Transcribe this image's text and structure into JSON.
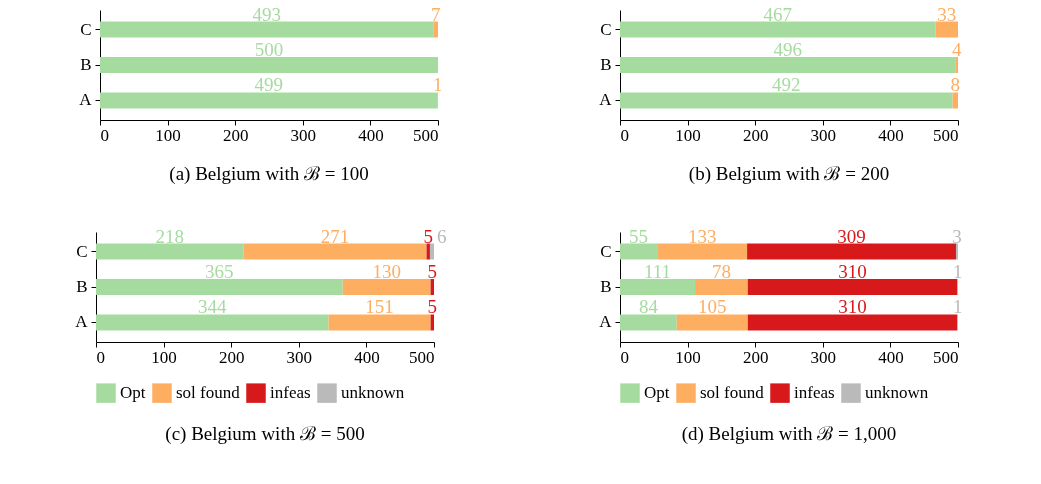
{
  "chart_data": [
    {
      "type": "bar",
      "orientation": "horizontal",
      "stacked": true,
      "title": "(a) Belgium with ℬ = 100",
      "categories": [
        "C",
        "B",
        "A"
      ],
      "xlim": [
        0,
        500
      ],
      "xticks": [
        0,
        100,
        200,
        300,
        400,
        500
      ],
      "grid": false,
      "series": [
        {
          "color": "#a6dba0",
          "values": [
            493,
            500,
            499
          ],
          "value_labels": [
            "493",
            "500",
            "499"
          ]
        },
        {
          "color": "#fdae61",
          "values": [
            7,
            0,
            1
          ],
          "value_labels": [
            "7",
            null,
            "1"
          ]
        }
      ]
    },
    {
      "type": "bar",
      "orientation": "horizontal",
      "stacked": true,
      "title": "(b) Belgium with ℬ = 200",
      "categories": [
        "C",
        "B",
        "A"
      ],
      "xlim": [
        0,
        500
      ],
      "xticks": [
        0,
        100,
        200,
        300,
        400,
        500
      ],
      "grid": false,
      "series": [
        {
          "color": "#a6dba0",
          "values": [
            467,
            496,
            492
          ],
          "value_labels": [
            "467",
            "496",
            "492"
          ]
        },
        {
          "color": "#fdae61",
          "values": [
            33,
            4,
            8
          ],
          "value_labels": [
            "33",
            "4",
            "8"
          ]
        }
      ]
    },
    {
      "type": "bar",
      "orientation": "horizontal",
      "stacked": true,
      "title": "(c) Belgium with ℬ = 500",
      "categories": [
        "C",
        "B",
        "A"
      ],
      "xlim": [
        0,
        500
      ],
      "xticks": [
        0,
        100,
        200,
        300,
        400,
        500
      ],
      "grid": false,
      "legend": "bottom",
      "series": [
        {
          "name": "Opt",
          "color": "#a6dba0",
          "values": [
            218,
            365,
            344
          ],
          "value_labels": [
            "218",
            "365",
            "344"
          ]
        },
        {
          "name": "sol found",
          "color": "#fdae61",
          "values": [
            271,
            130,
            151
          ],
          "value_labels": [
            "271",
            "130",
            "151"
          ]
        },
        {
          "name": "infeas",
          "color": "#d7191c",
          "values": [
            5,
            5,
            5
          ],
          "value_labels": [
            "5",
            "5",
            "5"
          ]
        },
        {
          "name": "unknown",
          "color": "#bababa",
          "values": [
            6,
            0,
            0
          ],
          "value_labels": [
            "6",
            null,
            null
          ]
        }
      ]
    },
    {
      "type": "bar",
      "orientation": "horizontal",
      "stacked": true,
      "title": "(d) Belgium with ℬ = 1,000",
      "categories": [
        "C",
        "B",
        "A"
      ],
      "xlim": [
        0,
        500
      ],
      "xticks": [
        0,
        100,
        200,
        300,
        400,
        500
      ],
      "grid": false,
      "legend": "bottom",
      "series": [
        {
          "name": "Opt",
          "color": "#a6dba0",
          "values": [
            55,
            111,
            84
          ],
          "value_labels": [
            "55",
            "111",
            "84"
          ]
        },
        {
          "name": "sol found",
          "color": "#fdae61",
          "values": [
            133,
            78,
            105
          ],
          "value_labels": [
            "133",
            "78",
            "105"
          ]
        },
        {
          "name": "infeas",
          "color": "#d7191c",
          "values": [
            309,
            310,
            310
          ],
          "value_labels": [
            "309",
            "310",
            "310"
          ]
        },
        {
          "name": "unknown",
          "color": "#bababa",
          "values": [
            3,
            1,
            1
          ],
          "value_labels": [
            "3",
            "1",
            "1"
          ]
        }
      ]
    }
  ]
}
